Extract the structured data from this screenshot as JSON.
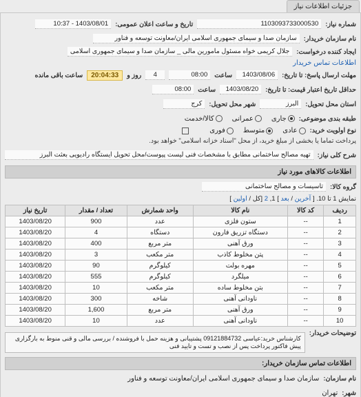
{
  "tab_title": "جزئیات اطلاعات نیاز",
  "header": {
    "req_no_label": "شماره نیاز:",
    "req_no": "1103093733000530",
    "announce_label": "تاریخ و ساعت اعلان عمومی:",
    "announce_val": "1403/08/01 - 10:37",
    "buyer_label": "نام سازمان خریدار:",
    "buyer_val": "سازمان صدا و سیمای جمهوری اسلامی ایران/معاونت توسعه و فناور",
    "requester_label": "ایجاد کننده درخواست:",
    "requester_val": "جلال کریمی خواه مسئول مامورین مالی _ سازمان صدا و سیمای جمهوری اسلامی",
    "buyer_contact_link": "اطلاعات تماس خریدار",
    "deadline_label": "مهلت ارسال پاسخ: تا تاریخ:",
    "deadline_date": "1403/08/06",
    "time_label": "ساعت",
    "deadline_time": "08:00",
    "remain_days": "4",
    "remain_days_label": "روز و",
    "remain_time": "20:04:33",
    "remain_suffix": "ساعت باقی مانده",
    "validity_label": "حداقل تاریخ اعتبار قیمت: تا تاریخ:",
    "validity_date": "1403/08/20",
    "validity_time": "08:00",
    "delivery_prov_label": "استان محل تحویل:",
    "delivery_prov": "البرز",
    "delivery_city_label": "شهر محل تحویل:",
    "delivery_city": "کرج",
    "budget_label": "طبقه بندی موضوعی:",
    "budget_opts": {
      "a": "جاری",
      "b": "عمرانی",
      "c": "کالا/خدمت"
    },
    "budget_sel": "a",
    "priority_label": "نوع اولویت خرید:",
    "priority_opts": {
      "a": "عادی",
      "b": "متوسط",
      "c": "فوری"
    },
    "priority_sel": "b",
    "pay_note_chk_label": "پرداخت تماما یا بخشی از مبلغ خرید، از محل \"اسناد خزانه اسلامی\" خواهد بود.",
    "desc_label": "شرح کلی نیاز:",
    "desc_val": "تهیه مصالح ساختمانی مطابق با مشخصات فنی لیست پیوست/محل تحویل ایستگاه رادیویی بعثت البرز"
  },
  "goods": {
    "section_title": "اطلاعات کالاهای مورد نیاز",
    "group_label": "گروه کالا:",
    "group_val": "تاسیسات و مصالح ساختمانی",
    "pager_text": "نمایش 1 تا 10. [",
    "pager_prev": "آخرین",
    "pager_sep": " / ",
    "pager_next": "بعد",
    "pager_close": "] 1, ",
    "pager_page2": "2",
    "pager_units": "[کل / ",
    "pager_first": "اولین",
    "pager_end": "]",
    "columns": [
      "ردیف",
      "کد کالا",
      "نام کالا",
      "واحد شمارش",
      "تعداد / مقدار",
      "تاریخ نیاز"
    ],
    "rows": [
      [
        "1",
        "--",
        "ستون فلزی",
        "عدد",
        "900",
        "1403/08/20"
      ],
      [
        "2",
        "--",
        "دستگاه تزریق فارون",
        "دستگاه",
        "4",
        "1403/08/20"
      ],
      [
        "3",
        "--",
        "ورق آهنی",
        "متر مربع",
        "400",
        "1403/08/20"
      ],
      [
        "4",
        "--",
        "پتن مخلوط کاذب",
        "متر مکعب",
        "3",
        "1403/08/20"
      ],
      [
        "5",
        "--",
        "مهره بولت",
        "کیلوگرم",
        "90",
        "1403/08/20"
      ],
      [
        "6",
        "--",
        "میلگرد",
        "کیلوگرم",
        "555",
        "1403/08/20"
      ],
      [
        "7",
        "--",
        "بتن مخلوط ساده",
        "متر مکعب",
        "10",
        "1403/08/20"
      ],
      [
        "8",
        "--",
        "ناودانی آهنی",
        "شاخه",
        "300",
        "1403/08/20"
      ],
      [
        "9",
        "--",
        "ورق آهنی",
        "متر مربع",
        "1,600",
        "1403/08/20"
      ],
      [
        "10",
        "--",
        "ناودانی آهنی",
        "عدد",
        "10",
        "1403/08/20"
      ]
    ]
  },
  "footer": {
    "note_label": "توضیحات خریدار:",
    "note_text": "کارشناس خرید:عیاسی 09121884732 پشتیبانی و هزینه حمل با فروشنده / بررسی مالی و قنی منوط به بارگزاری پیش فاکتور پرداخت پس از نصب و تست و تایید فنی",
    "org_section": "اطلاعات تماس سازمان خریدار:",
    "org_name_label": "نام سازمان:",
    "org_name": "سازمان صدا و سیمای جمهوری اسلامی ایران/معاونت توسعه و فناور",
    "org_city_label": "شهر:",
    "org_city": "تهران"
  },
  "colors": {
    "bg": "#ececec",
    "panel_border": "#c8c8c8",
    "header_bg": "#d0d0d0",
    "table_th_bg": "#e3e3e3",
    "table_td_bg": "#fbfbfb",
    "link": "#1b5fb3",
    "countdown_bg": "#ffe8a0"
  }
}
